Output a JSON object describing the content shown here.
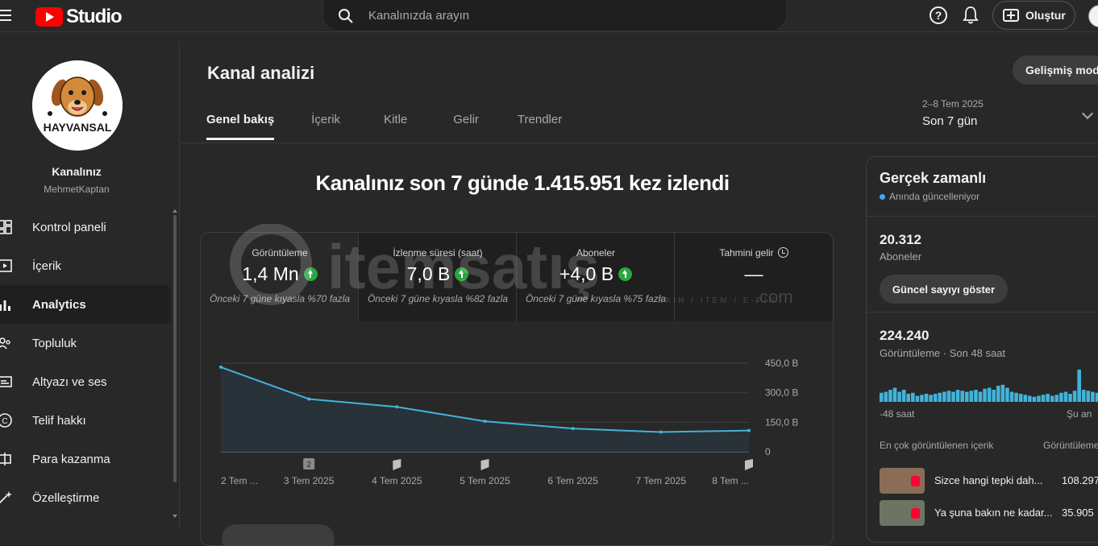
{
  "topbar": {
    "logo_text": "Studio",
    "search_placeholder": "Kanalınızda arayın",
    "create_label": "Oluştur"
  },
  "sidebar": {
    "channel_name": "Kanalınız",
    "channel_handle": "MehmetKaptan",
    "avatar_text": "HAYVANSAL",
    "items": [
      {
        "label": "Kontrol paneli",
        "icon": "dashboard-icon"
      },
      {
        "label": "İçerik",
        "icon": "content-icon"
      },
      {
        "label": "Analytics",
        "icon": "analytics-icon",
        "active": true
      },
      {
        "label": "Topluluk",
        "icon": "community-icon"
      },
      {
        "label": "Altyazı ve ses",
        "icon": "subtitles-icon"
      },
      {
        "label": "Telif hakkı",
        "icon": "copyright-icon"
      },
      {
        "label": "Para kazanma",
        "icon": "monetization-icon"
      },
      {
        "label": "Özelleştirme",
        "icon": "customization-icon"
      }
    ]
  },
  "main": {
    "title": "Kanal analizi",
    "advanced_mode": "Gelişmiş mod",
    "tabs": [
      "Genel bakış",
      "İçerik",
      "Kitle",
      "Gelir",
      "Trendler"
    ],
    "date_range_sub": "2–8 Tem 2025",
    "date_range_main": "Son 7 gün",
    "headline": "Kanalınız son 7 günde 1.415.951 kez izlendi",
    "metrics": [
      {
        "label": "Görüntüleme",
        "value": "1,4 Mn",
        "compare": "Önceki 7 güne kıyasla %70 fazla",
        "trend": "up"
      },
      {
        "label": "İzlenme süresi (saat)",
        "value": "7,0 B",
        "compare": "Önceki 7 güne kıyasla %82 fazla",
        "trend": "up"
      },
      {
        "label": "Aboneler",
        "value": "+4,0 B",
        "compare": "Önceki 7 güne kıyasla %75 fazla",
        "trend": "up"
      },
      {
        "label": "Tahmini gelir",
        "value": "—",
        "compare": "",
        "trend": "none"
      }
    ]
  },
  "chart_data": {
    "type": "area",
    "x": [
      "2 Tem ...",
      "3 Tem 2025",
      "4 Tem 2025",
      "5 Tem 2025",
      "6 Tem 2025",
      "7 Tem 2025",
      "8 Tem ..."
    ],
    "values": [
      430000,
      268000,
      228000,
      155000,
      118000,
      100000,
      108000
    ],
    "y_ticks": [
      "450,0 B",
      "300,0 B",
      "150,0 B",
      "0"
    ],
    "ylim": [
      0,
      450000
    ],
    "markers": [
      {
        "x_index": 1,
        "kind": "count",
        "text": "2"
      },
      {
        "x_index": 2,
        "kind": "short"
      },
      {
        "x_index": 3,
        "kind": "short"
      },
      {
        "x_index": 6,
        "kind": "short"
      }
    ],
    "line_color": "#41b4d9",
    "grid": true
  },
  "realtime": {
    "title": "Gerçek zamanlı",
    "subtitle": "Anında güncelleniyor",
    "subscribers_value": "20.312",
    "subscribers_label": "Aboneler",
    "show_count_button": "Güncel sayıyı göster",
    "views_value": "224.240",
    "views_label": "Görüntüleme · Son 48 saat",
    "axis_start": "-48 saat",
    "axis_end": "Şu an",
    "top_content_header": "En çok görüntülenen içerik",
    "views_header": "Görüntüleme",
    "bar_values": [
      9,
      10,
      12,
      14,
      10,
      12,
      8,
      9,
      6,
      7,
      8,
      7,
      8,
      9,
      10,
      11,
      10,
      12,
      11,
      10,
      11,
      12,
      10,
      13,
      14,
      12,
      16,
      17,
      14,
      10,
      9,
      8,
      7,
      6,
      5,
      6,
      7,
      8,
      6,
      7,
      9,
      10,
      8,
      11,
      32,
      12,
      11,
      10,
      9,
      10,
      8,
      9
    ],
    "bar_color": "#41b4d9",
    "top_content": [
      {
        "title": "Sizce hangi tepki dah...",
        "views": "108.297"
      },
      {
        "title": "Ya şuna bakın ne kadar...",
        "views": "35.905"
      }
    ]
  },
  "watermark": {
    "brand": "itemsatış",
    "suffix": ".com",
    "tagline": "SKIN / ITEM / E-PIN"
  }
}
